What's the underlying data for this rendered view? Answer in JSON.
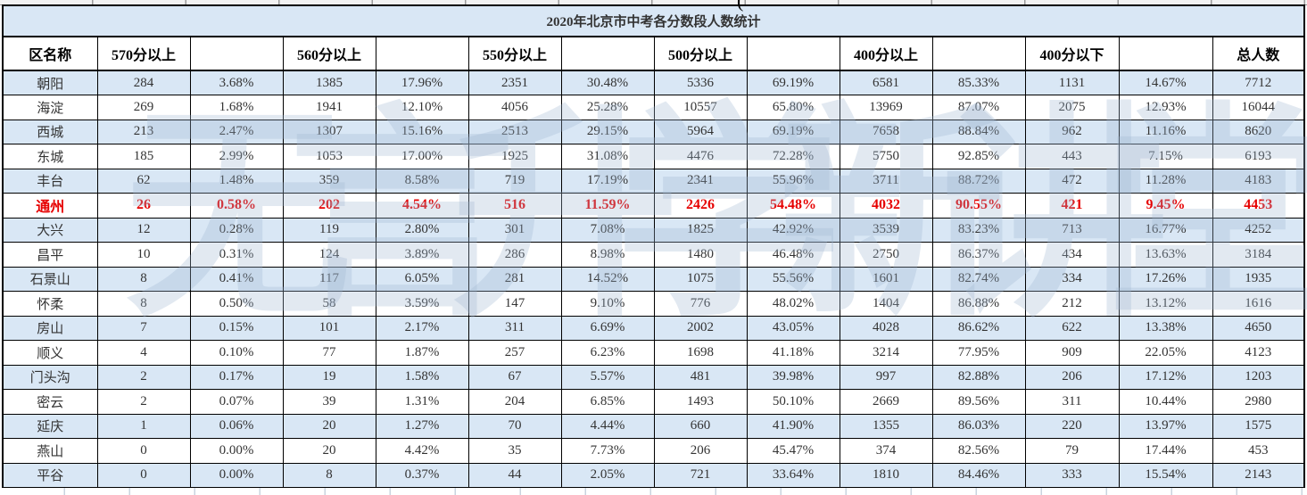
{
  "title": "2020年北京市中考各分数段人数统计",
  "watermark": "无言升学新讲堂",
  "stray_mark": "(",
  "colors": {
    "band": "#d9e7f5",
    "highlight_text": "#e60000",
    "text": "#333333",
    "border": "#000000"
  },
  "table": {
    "headers": [
      "区名称",
      "570分以上",
      "",
      "560分以上",
      "",
      "550分以上",
      "",
      "500分以上",
      "",
      "400分以上",
      "",
      "400分以下",
      "",
      "总人数"
    ],
    "rows": [
      {
        "name": "朝阳",
        "highlight": false,
        "cells": [
          "284",
          "3.68%",
          "1385",
          "17.96%",
          "2351",
          "30.48%",
          "5336",
          "69.19%",
          "6581",
          "85.33%",
          "1131",
          "14.67%",
          "7712"
        ]
      },
      {
        "name": "海淀",
        "highlight": false,
        "cells": [
          "269",
          "1.68%",
          "1941",
          "12.10%",
          "4056",
          "25.28%",
          "10557",
          "65.80%",
          "13969",
          "87.07%",
          "2075",
          "12.93%",
          "16044"
        ]
      },
      {
        "name": "西城",
        "highlight": false,
        "cells": [
          "213",
          "2.47%",
          "1307",
          "15.16%",
          "2513",
          "29.15%",
          "5964",
          "69.19%",
          "7658",
          "88.84%",
          "962",
          "11.16%",
          "8620"
        ]
      },
      {
        "name": "东城",
        "highlight": false,
        "cells": [
          "185",
          "2.99%",
          "1053",
          "17.00%",
          "1925",
          "31.08%",
          "4476",
          "72.28%",
          "5750",
          "92.85%",
          "443",
          "7.15%",
          "6193"
        ]
      },
      {
        "name": "丰台",
        "highlight": false,
        "cells": [
          "62",
          "1.48%",
          "359",
          "8.58%",
          "719",
          "17.19%",
          "2341",
          "55.96%",
          "3711",
          "88.72%",
          "472",
          "11.28%",
          "4183"
        ]
      },
      {
        "name": "通州",
        "highlight": true,
        "cells": [
          "26",
          "0.58%",
          "202",
          "4.54%",
          "516",
          "11.59%",
          "2426",
          "54.48%",
          "4032",
          "90.55%",
          "421",
          "9.45%",
          "4453"
        ]
      },
      {
        "name": "大兴",
        "highlight": false,
        "cells": [
          "12",
          "0.28%",
          "119",
          "2.80%",
          "301",
          "7.08%",
          "1825",
          "42.92%",
          "3539",
          "83.23%",
          "713",
          "16.77%",
          "4252"
        ]
      },
      {
        "name": "昌平",
        "highlight": false,
        "cells": [
          "10",
          "0.31%",
          "124",
          "3.89%",
          "286",
          "8.98%",
          "1480",
          "46.48%",
          "2750",
          "86.37%",
          "434",
          "13.63%",
          "3184"
        ]
      },
      {
        "name": "石景山",
        "highlight": false,
        "cells": [
          "8",
          "0.41%",
          "117",
          "6.05%",
          "281",
          "14.52%",
          "1075",
          "55.56%",
          "1601",
          "82.74%",
          "334",
          "17.26%",
          "1935"
        ]
      },
      {
        "name": "怀柔",
        "highlight": false,
        "cells": [
          "8",
          "0.50%",
          "58",
          "3.59%",
          "147",
          "9.10%",
          "776",
          "48.02%",
          "1404",
          "86.88%",
          "212",
          "13.12%",
          "1616"
        ]
      },
      {
        "name": "房山",
        "highlight": false,
        "cells": [
          "7",
          "0.15%",
          "101",
          "2.17%",
          "311",
          "6.69%",
          "2002",
          "43.05%",
          "4028",
          "86.62%",
          "622",
          "13.38%",
          "4650"
        ]
      },
      {
        "name": "顺义",
        "highlight": false,
        "cells": [
          "4",
          "0.10%",
          "77",
          "1.87%",
          "257",
          "6.23%",
          "1698",
          "41.18%",
          "3214",
          "77.95%",
          "909",
          "22.05%",
          "4123"
        ]
      },
      {
        "name": "门头沟",
        "highlight": false,
        "cells": [
          "2",
          "0.17%",
          "19",
          "1.58%",
          "67",
          "5.57%",
          "481",
          "39.98%",
          "997",
          "82.88%",
          "206",
          "17.12%",
          "1203"
        ]
      },
      {
        "name": "密云",
        "highlight": false,
        "cells": [
          "2",
          "0.07%",
          "39",
          "1.31%",
          "204",
          "6.85%",
          "1493",
          "50.10%",
          "2669",
          "89.56%",
          "311",
          "10.44%",
          "2980"
        ]
      },
      {
        "name": "延庆",
        "highlight": false,
        "cells": [
          "1",
          "0.06%",
          "20",
          "1.27%",
          "70",
          "4.44%",
          "660",
          "41.90%",
          "1355",
          "86.03%",
          "220",
          "13.97%",
          "1575"
        ]
      },
      {
        "name": "燕山",
        "highlight": false,
        "cells": [
          "0",
          "0.00%",
          "20",
          "4.42%",
          "35",
          "7.73%",
          "206",
          "45.47%",
          "374",
          "82.56%",
          "79",
          "17.44%",
          "453"
        ]
      },
      {
        "name": "平谷",
        "highlight": false,
        "cells": [
          "0",
          "0.00%",
          "8",
          "0.37%",
          "44",
          "2.05%",
          "721",
          "33.64%",
          "1810",
          "84.46%",
          "333",
          "15.54%",
          "2143"
        ]
      }
    ]
  }
}
